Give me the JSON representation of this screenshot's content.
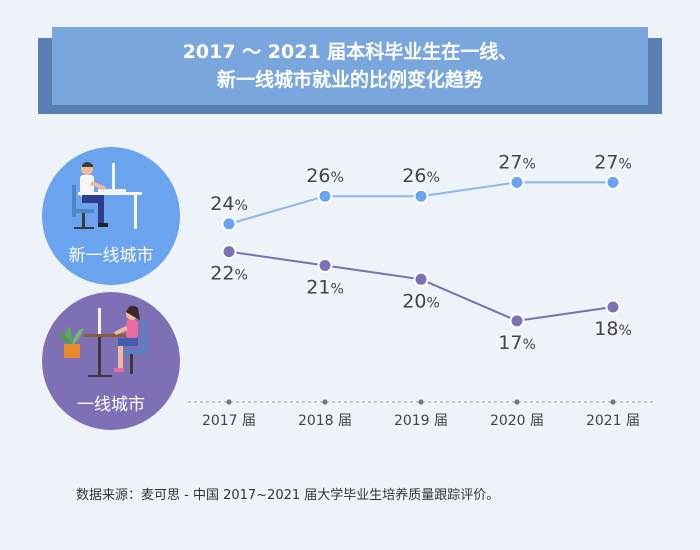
{
  "title": {
    "line1": "2017 ～ 2021 届本科毕业生在一线、",
    "line2": "新一线城市就业的比例变化趋势"
  },
  "circles": {
    "new_first_tier": "新一线城市",
    "first_tier": "一线城市"
  },
  "source": "数据来源：麦可思 - 中国 2017~2021 届大学毕业生培养质量跟踪评价。",
  "colors": {
    "new_first_tier": "#6aa3ee",
    "first_tier": "#7f70b6",
    "title_bg": "#7aa6de",
    "title_shadow": "#5a7fb2",
    "background": "#eef3f9"
  },
  "chart_data": {
    "type": "line",
    "categories": [
      "2017 届",
      "2018 届",
      "2019 届",
      "2020 届",
      "2021 届"
    ],
    "series": [
      {
        "name": "新一线城市",
        "values": [
          24,
          26,
          26,
          27,
          27
        ],
        "labels": [
          "24%",
          "26%",
          "26%",
          "27%",
          "27%"
        ]
      },
      {
        "name": "一线城市",
        "values": [
          22,
          21,
          20,
          17,
          18
        ],
        "labels": [
          "22%",
          "21%",
          "20%",
          "17%",
          "18%"
        ]
      }
    ],
    "grid": false,
    "legend": "left"
  }
}
